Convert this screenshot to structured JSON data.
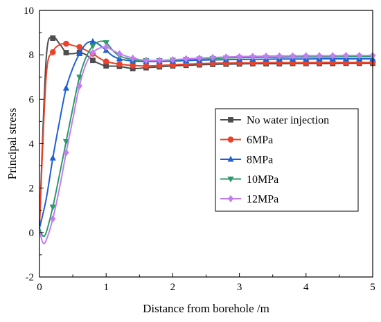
{
  "chart_data": {
    "type": "line",
    "title": "",
    "xlabel": "Distance from borehole /m",
    "ylabel": "Principal stress",
    "xlim": [
      0,
      5
    ],
    "ylim": [
      -2,
      10
    ],
    "x_ticks": [
      "0",
      "1",
      "2",
      "3",
      "4",
      "5"
    ],
    "y_ticks": [
      "-2",
      "0",
      "2",
      "4",
      "6",
      "8",
      "10"
    ],
    "grid": false,
    "legend_position": "center-right",
    "series": [
      {
        "name": "No water injection",
        "color": "#4d4d4d",
        "marker": "square",
        "points": [
          [
            0,
            0.3
          ],
          [
            0.1,
            7.8
          ],
          [
            0.2,
            8.75
          ],
          [
            0.3,
            8.5
          ],
          [
            0.4,
            8.1
          ],
          [
            0.5,
            8.05
          ],
          [
            0.6,
            8.1
          ],
          [
            0.7,
            8.0
          ],
          [
            0.8,
            7.75
          ],
          [
            0.9,
            7.6
          ],
          [
            1.0,
            7.5
          ],
          [
            1.2,
            7.48
          ],
          [
            1.4,
            7.38
          ],
          [
            1.6,
            7.42
          ],
          [
            1.8,
            7.46
          ],
          [
            2.0,
            7.5
          ],
          [
            2.2,
            7.53
          ],
          [
            2.4,
            7.55
          ],
          [
            2.6,
            7.57
          ],
          [
            2.8,
            7.58
          ],
          [
            3.0,
            7.59
          ],
          [
            3.2,
            7.6
          ],
          [
            3.4,
            7.6
          ],
          [
            3.6,
            7.6
          ],
          [
            3.8,
            7.61
          ],
          [
            4.0,
            7.61
          ],
          [
            4.2,
            7.61
          ],
          [
            4.4,
            7.61
          ],
          [
            4.6,
            7.62
          ],
          [
            4.8,
            7.62
          ],
          [
            5.0,
            7.62
          ]
        ],
        "marker_x": [
          0.2,
          0.4,
          0.6,
          0.8,
          1.0,
          1.2,
          1.4,
          1.6,
          1.8,
          2.0,
          2.2,
          2.4,
          2.6,
          2.8,
          3.0,
          3.2,
          3.4,
          3.6,
          3.8,
          4.0,
          4.2,
          4.4,
          4.6,
          4.8,
          5.0
        ]
      },
      {
        "name": "6MPa",
        "color": "#e8432c",
        "marker": "circle",
        "points": [
          [
            0,
            0.3
          ],
          [
            0.1,
            7.0
          ],
          [
            0.2,
            8.12
          ],
          [
            0.3,
            8.45
          ],
          [
            0.4,
            8.5
          ],
          [
            0.5,
            8.42
          ],
          [
            0.6,
            8.35
          ],
          [
            0.7,
            8.2
          ],
          [
            0.8,
            8.05
          ],
          [
            0.9,
            7.85
          ],
          [
            1.0,
            7.7
          ],
          [
            1.2,
            7.58
          ],
          [
            1.4,
            7.52
          ],
          [
            1.6,
            7.5
          ],
          [
            1.8,
            7.52
          ],
          [
            2.0,
            7.55
          ],
          [
            2.2,
            7.58
          ],
          [
            2.4,
            7.6
          ],
          [
            2.6,
            7.62
          ],
          [
            2.8,
            7.63
          ],
          [
            3.0,
            7.64
          ],
          [
            3.2,
            7.64
          ],
          [
            3.4,
            7.65
          ],
          [
            3.6,
            7.65
          ],
          [
            3.8,
            7.65
          ],
          [
            4.0,
            7.65
          ],
          [
            4.2,
            7.66
          ],
          [
            4.4,
            7.66
          ],
          [
            4.6,
            7.66
          ],
          [
            4.8,
            7.66
          ],
          [
            5.0,
            7.66
          ]
        ],
        "marker_x": [
          0.2,
          0.4,
          0.6,
          0.8,
          1.0,
          1.2,
          1.4,
          1.6,
          1.8,
          2.0,
          2.2,
          2.4,
          2.6,
          2.8,
          3.0,
          3.2,
          3.4,
          3.6,
          3.8,
          4.0,
          4.2,
          4.4,
          4.6,
          4.8,
          5.0
        ]
      },
      {
        "name": "8MPa",
        "color": "#1f5fd6",
        "marker": "triangle",
        "points": [
          [
            0,
            0.2
          ],
          [
            0.1,
            1.5
          ],
          [
            0.2,
            3.35
          ],
          [
            0.3,
            5.0
          ],
          [
            0.4,
            6.5
          ],
          [
            0.5,
            7.4
          ],
          [
            0.6,
            8.05
          ],
          [
            0.7,
            8.5
          ],
          [
            0.8,
            8.6
          ],
          [
            0.9,
            8.45
          ],
          [
            1.0,
            8.2
          ],
          [
            1.1,
            7.95
          ],
          [
            1.2,
            7.82
          ],
          [
            1.4,
            7.72
          ],
          [
            1.6,
            7.7
          ],
          [
            1.8,
            7.7
          ],
          [
            2.0,
            7.72
          ],
          [
            2.2,
            7.74
          ],
          [
            2.4,
            7.76
          ],
          [
            2.6,
            7.77
          ],
          [
            2.8,
            7.78
          ],
          [
            3.0,
            7.79
          ],
          [
            3.2,
            7.8
          ],
          [
            3.4,
            7.8
          ],
          [
            3.6,
            7.81
          ],
          [
            3.8,
            7.81
          ],
          [
            4.0,
            7.81
          ],
          [
            4.2,
            7.82
          ],
          [
            4.4,
            7.82
          ],
          [
            4.6,
            7.82
          ],
          [
            4.8,
            7.82
          ],
          [
            5.0,
            7.82
          ]
        ],
        "marker_x": [
          0.2,
          0.4,
          0.6,
          0.8,
          1.0,
          1.2,
          1.4,
          1.6,
          1.8,
          2.0,
          2.2,
          2.4,
          2.6,
          2.8,
          3.0,
          3.2,
          3.4,
          3.6,
          3.8,
          4.0,
          4.2,
          4.4,
          4.6,
          4.8,
          5.0
        ]
      },
      {
        "name": "10MPa",
        "color": "#2a9a6a",
        "marker": "triangle-down",
        "points": [
          [
            0,
            0.2
          ],
          [
            0.05,
            -0.15
          ],
          [
            0.1,
            0.0
          ],
          [
            0.2,
            1.15
          ],
          [
            0.3,
            2.6
          ],
          [
            0.4,
            4.1
          ],
          [
            0.5,
            5.6
          ],
          [
            0.6,
            7.0
          ],
          [
            0.7,
            7.9
          ],
          [
            0.8,
            8.4
          ],
          [
            0.9,
            8.6
          ],
          [
            1.0,
            8.55
          ],
          [
            1.1,
            8.2
          ],
          [
            1.2,
            7.95
          ],
          [
            1.4,
            7.78
          ],
          [
            1.6,
            7.74
          ],
          [
            1.8,
            7.74
          ],
          [
            2.0,
            7.76
          ],
          [
            2.2,
            7.8
          ],
          [
            2.4,
            7.82
          ],
          [
            2.6,
            7.84
          ],
          [
            2.8,
            7.86
          ],
          [
            3.0,
            7.87
          ],
          [
            3.2,
            7.88
          ],
          [
            3.4,
            7.89
          ],
          [
            3.6,
            7.89
          ],
          [
            3.8,
            7.9
          ],
          [
            4.0,
            7.9
          ],
          [
            4.2,
            7.9
          ],
          [
            4.4,
            7.9
          ],
          [
            4.6,
            7.91
          ],
          [
            4.8,
            7.91
          ],
          [
            5.0,
            7.91
          ]
        ],
        "marker_x": [
          0.2,
          0.4,
          0.6,
          0.8,
          1.0,
          1.2,
          1.4,
          1.6,
          1.8,
          2.0,
          2.2,
          2.4,
          2.6,
          2.8,
          3.0,
          3.2,
          3.4,
          3.6,
          3.8,
          4.0,
          4.2,
          4.4,
          4.6,
          4.8,
          5.0
        ]
      },
      {
        "name": "12MPa",
        "color": "#c27ef0",
        "marker": "diamond",
        "points": [
          [
            0,
            0.1
          ],
          [
            0.05,
            -0.45
          ],
          [
            0.1,
            -0.35
          ],
          [
            0.2,
            0.62
          ],
          [
            0.3,
            2.0
          ],
          [
            0.4,
            3.6
          ],
          [
            0.5,
            5.1
          ],
          [
            0.6,
            6.6
          ],
          [
            0.7,
            7.6
          ],
          [
            0.8,
            8.1
          ],
          [
            0.9,
            8.3
          ],
          [
            1.0,
            8.35
          ],
          [
            1.1,
            8.2
          ],
          [
            1.2,
            8.05
          ],
          [
            1.4,
            7.85
          ],
          [
            1.6,
            7.75
          ],
          [
            1.8,
            7.75
          ],
          [
            2.0,
            7.78
          ],
          [
            2.2,
            7.82
          ],
          [
            2.4,
            7.85
          ],
          [
            2.6,
            7.88
          ],
          [
            2.8,
            7.9
          ],
          [
            3.0,
            7.92
          ],
          [
            3.2,
            7.93
          ],
          [
            3.4,
            7.94
          ],
          [
            3.6,
            7.95
          ],
          [
            3.8,
            7.95
          ],
          [
            4.0,
            7.96
          ],
          [
            4.2,
            7.96
          ],
          [
            4.4,
            7.96
          ],
          [
            4.6,
            7.97
          ],
          [
            4.8,
            7.97
          ],
          [
            5.0,
            7.97
          ]
        ],
        "marker_x": [
          0.2,
          0.4,
          0.6,
          0.8,
          1.0,
          1.2,
          1.4,
          1.6,
          1.8,
          2.0,
          2.2,
          2.4,
          2.6,
          2.8,
          3.0,
          3.2,
          3.4,
          3.6,
          3.8,
          4.0,
          4.2,
          4.4,
          4.6,
          4.8,
          5.0
        ]
      }
    ]
  }
}
